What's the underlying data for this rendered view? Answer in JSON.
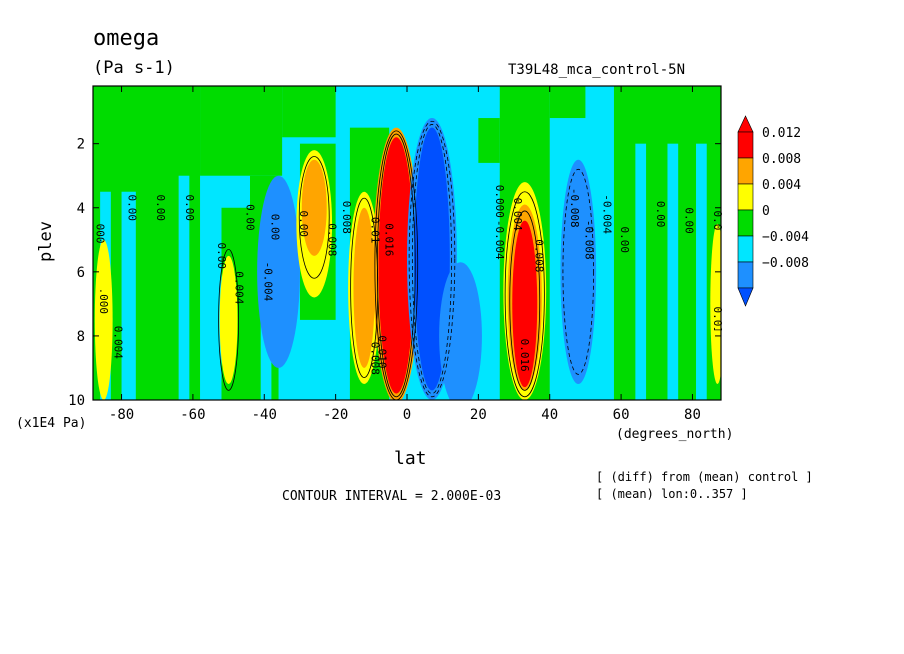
{
  "chart_data": {
    "type": "heatmap",
    "title": "omega",
    "units": "(Pa s-1)",
    "run_label": "T39L48_mca_control-5N",
    "xlabel": "lat",
    "xunit": "(degrees_north)",
    "ylabel": "plev",
    "yunit": "(x1E4 Pa)",
    "xlim": [
      -88,
      88
    ],
    "ylim": [
      10,
      0.2
    ],
    "xticks": [
      -80,
      -60,
      -40,
      -20,
      0,
      20,
      40,
      60,
      80
    ],
    "xtick_labels": [
      "-80",
      "-60",
      "-40",
      "-20",
      "0",
      "20",
      "40",
      "60",
      "80"
    ],
    "yticks": [
      2,
      4,
      6,
      8,
      10
    ],
    "ytick_labels": [
      "2",
      "4",
      "6",
      "8",
      "10"
    ],
    "contour_interval": "CONTOUR INTERVAL = 2.000E-03",
    "notes": [
      "[ (diff) from (mean) control ]",
      "[ (mean) lon:0..357 ]"
    ],
    "colorbar": {
      "labels": [
        "0.012",
        "0.008",
        "0.004",
        "0",
        "−0.004",
        "−0.008"
      ],
      "colors": [
        "#ff0000",
        "#ffa500",
        "#ffff00",
        "#00dc00",
        "#00e6ff",
        "#1e90ff",
        "#0050ff"
      ],
      "level_bins": [
        "<-0.008",
        "-0.008..-0.004",
        "-0.004..0",
        "0..0.004",
        "0.004..0.008",
        "0.008..0.012",
        ">0.012"
      ]
    },
    "contour_labels": [
      "0.000",
      "0.000",
      "0.00",
      "0.00",
      "0.00",
      "0.00",
      "0.00",
      "0.00",
      "0.00",
      "0.004",
      "0.004",
      "-0.004",
      "-0.008",
      "0.008",
      "0.008",
      "0.01",
      "0.016",
      "0.010",
      "0.008",
      "-0.004",
      "0.004",
      "0.008",
      "-0.008",
      "-0.004",
      "0.016",
      "0.000",
      "0.00",
      "0.00",
      "0.00",
      "0.00",
      "0.016"
    ],
    "features": [
      {
        "name": "strong upward anomaly near equator",
        "lat": -2,
        "plev": [
          2,
          9.5
        ],
        "value": 0.016
      },
      {
        "name": "strong downward anomaly north of equator",
        "lat": 6,
        "plev": [
          1.5,
          9.5
        ],
        "value": -0.016
      },
      {
        "name": "positive anomaly",
        "lat": 33,
        "plev": [
          4,
          9.5
        ],
        "value": 0.016
      },
      {
        "name": "negative anomaly",
        "lat": 48,
        "plev": [
          3,
          9
        ],
        "value": -0.008
      },
      {
        "name": "positive anomaly",
        "lat": -26,
        "plev": [
          2.5,
          6
        ],
        "value": 0.008
      },
      {
        "name": "positive anomaly",
        "lat": -12,
        "plev": [
          3,
          9
        ],
        "value": 0.006
      },
      {
        "name": "positive anomaly",
        "lat": -50,
        "plev": [
          5,
          9.5
        ],
        "value": 0.005
      }
    ]
  }
}
